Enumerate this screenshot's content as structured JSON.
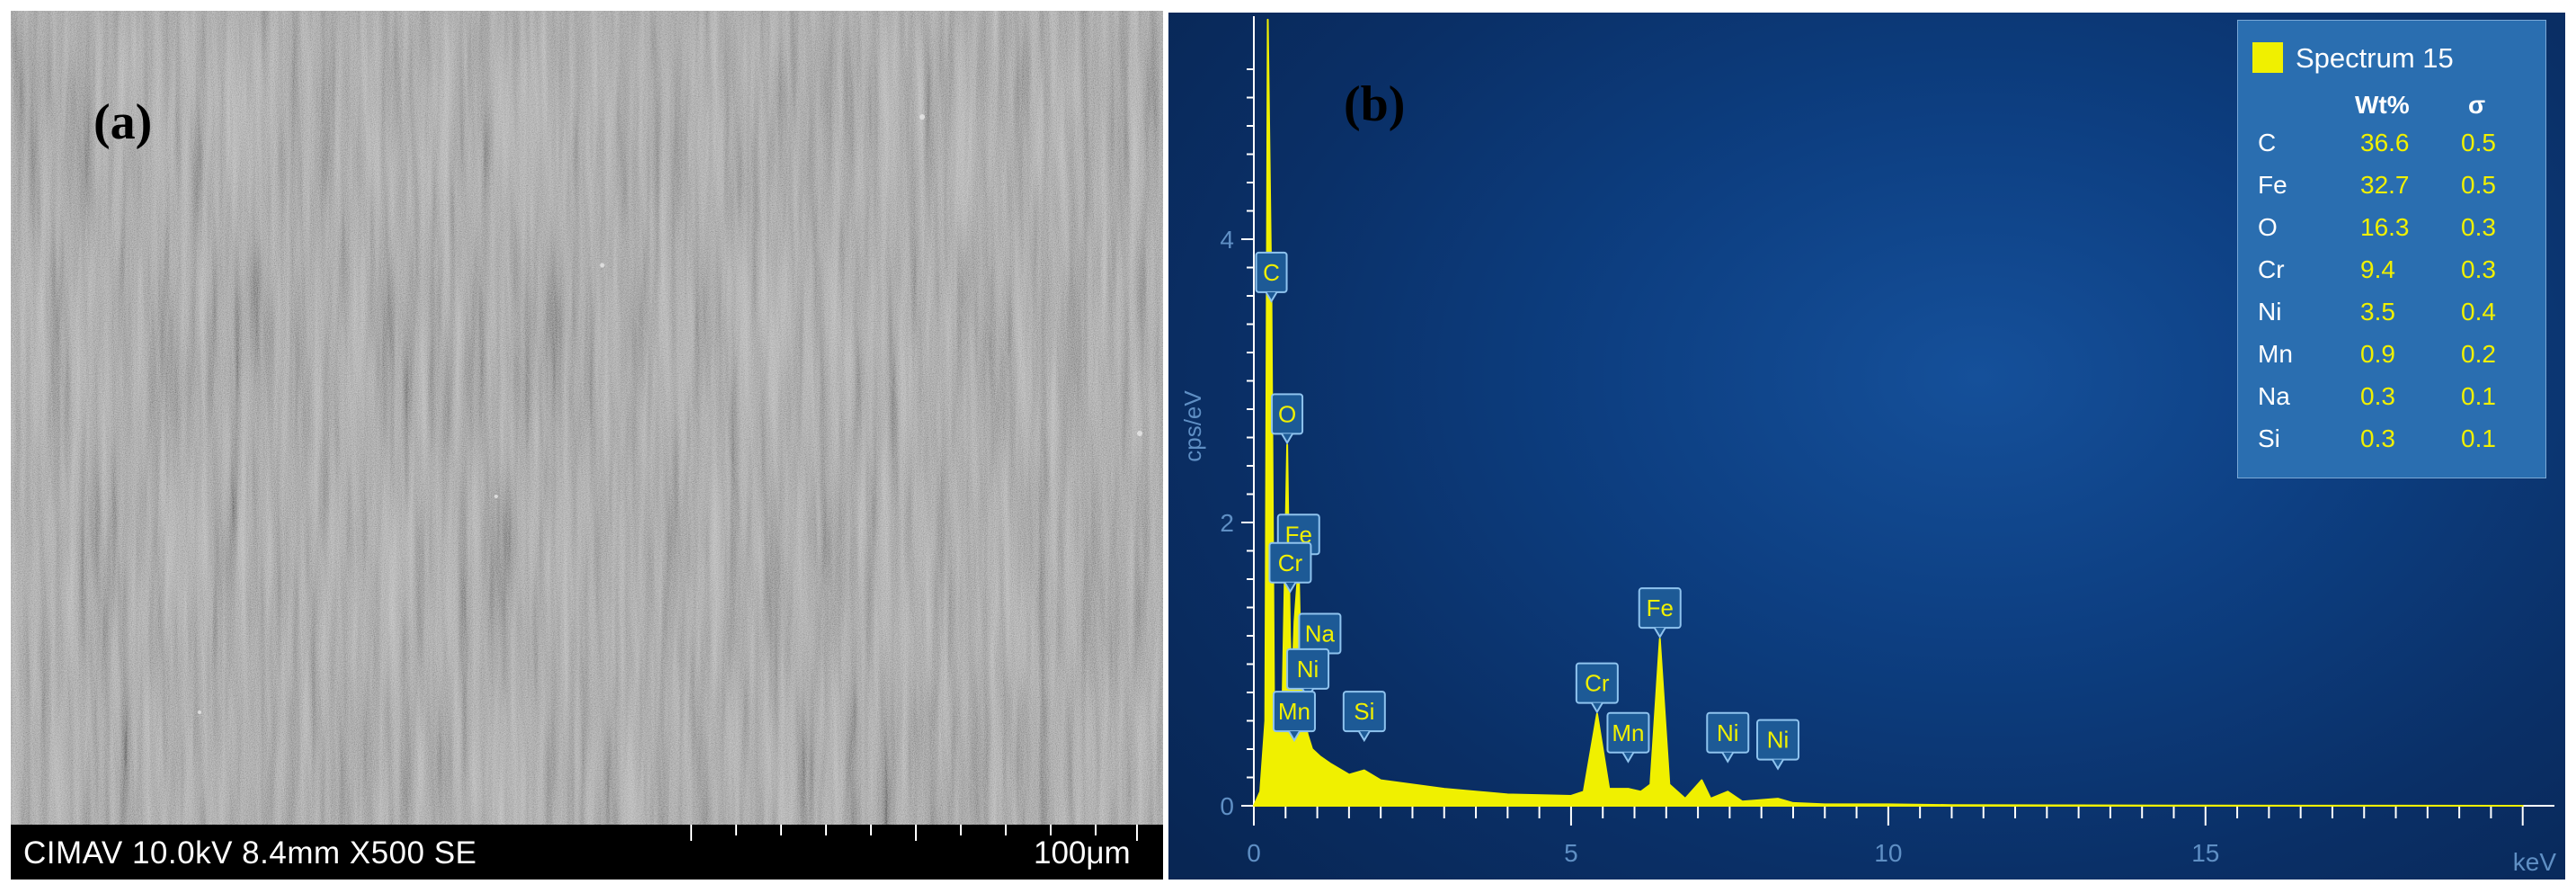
{
  "panel_a": {
    "label": "(a)",
    "info_text": "CIMAV 10.0kV 8.4mm X500 SE",
    "scale_label": "100μm"
  },
  "panel_b": {
    "label": "(b)"
  },
  "colors": {
    "spectrum": "#f0f000",
    "background": "#0d3f82",
    "legend_bg": "#2a6eb0",
    "axis": "#ffffff"
  },
  "chart_data": {
    "type": "area",
    "xlabel": "keV",
    "ylabel": "cps/eV",
    "xlim": [
      0,
      20.5
    ],
    "ylim": [
      0,
      5.6
    ],
    "x_ticks": [
      0,
      5,
      10,
      15
    ],
    "y_ticks": [
      0,
      2,
      4
    ],
    "grid": false,
    "legend_position": "top-right",
    "series": [
      {
        "name": "Spectrum 15",
        "x": [
          0,
          0.1,
          0.18,
          0.22,
          0.277,
          0.32,
          0.4,
          0.45,
          0.525,
          0.57,
          0.6,
          0.64,
          0.705,
          0.74,
          0.8,
          0.85,
          0.92,
          1.04,
          1.2,
          1.5,
          1.74,
          2.0,
          2.5,
          3.0,
          4.0,
          5.0,
          5.2,
          5.41,
          5.6,
          5.9,
          6.1,
          6.25,
          6.4,
          6.55,
          6.8,
          7.06,
          7.2,
          7.47,
          7.7,
          8.26,
          8.5,
          9.0,
          10.0,
          11.0,
          12.0,
          13.0,
          15.0,
          20.0
        ],
        "y": [
          0,
          0.1,
          0.6,
          5.55,
          3.55,
          0.6,
          0.5,
          0.7,
          2.55,
          1.2,
          0.8,
          1.3,
          1.7,
          1.0,
          0.6,
          0.5,
          0.4,
          0.35,
          0.3,
          0.22,
          0.25,
          0.18,
          0.15,
          0.12,
          0.08,
          0.07,
          0.1,
          0.65,
          0.12,
          0.12,
          0.1,
          0.15,
          1.18,
          0.15,
          0.05,
          0.18,
          0.05,
          0.1,
          0.03,
          0.05,
          0.02,
          0.01,
          0.01,
          0.005,
          0.004,
          0.003,
          0.001,
          0
        ]
      }
    ],
    "peak_labels": [
      {
        "label": "C",
        "x": 0.277,
        "y": 3.55
      },
      {
        "label": "O",
        "x": 0.525,
        "y": 2.55
      },
      {
        "label": "Fe",
        "x": 0.705,
        "y": 1.7
      },
      {
        "label": "Cr",
        "x": 0.573,
        "y": 1.5
      },
      {
        "label": "Na",
        "x": 1.04,
        "y": 1.0
      },
      {
        "label": "Ni",
        "x": 0.851,
        "y": 0.75
      },
      {
        "label": "Mn",
        "x": 0.637,
        "y": 0.45
      },
      {
        "label": "Si",
        "x": 1.74,
        "y": 0.45
      },
      {
        "label": "Cr",
        "x": 5.41,
        "y": 0.65
      },
      {
        "label": "Mn",
        "x": 5.9,
        "y": 0.3
      },
      {
        "label": "Fe",
        "x": 6.4,
        "y": 1.18
      },
      {
        "label": "Ni",
        "x": 7.47,
        "y": 0.3
      },
      {
        "label": "Ni",
        "x": 8.26,
        "y": 0.25
      }
    ],
    "legend_table": {
      "title": "Spectrum 15",
      "columns": [
        "",
        "Wt%",
        "σ"
      ],
      "rows": [
        {
          "element": "C",
          "wt": "36.6",
          "sigma": "0.5"
        },
        {
          "element": "Fe",
          "wt": "32.7",
          "sigma": "0.5"
        },
        {
          "element": "O",
          "wt": "16.3",
          "sigma": "0.3"
        },
        {
          "element": "Cr",
          "wt": "9.4",
          "sigma": "0.3"
        },
        {
          "element": "Ni",
          "wt": "3.5",
          "sigma": "0.4"
        },
        {
          "element": "Mn",
          "wt": "0.9",
          "sigma": "0.2"
        },
        {
          "element": "Na",
          "wt": "0.3",
          "sigma": "0.1"
        },
        {
          "element": "Si",
          "wt": "0.3",
          "sigma": "0.1"
        }
      ]
    }
  }
}
